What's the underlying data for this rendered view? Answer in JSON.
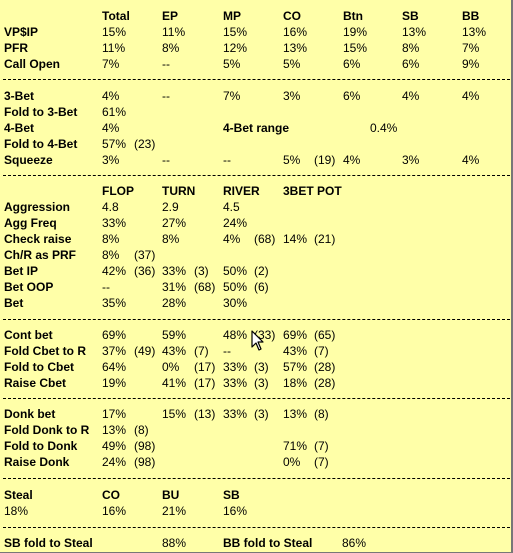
{
  "headers": {
    "positions": [
      "Total",
      "EP",
      "MP",
      "CO",
      "Btn",
      "SB",
      "BB"
    ],
    "streets": [
      "FLOP",
      "TURN",
      "RIVER",
      "3BET POT"
    ],
    "steal": [
      "CO",
      "BU",
      "SB"
    ]
  },
  "preflop": [
    {
      "label": "VP$IP",
      "values": [
        "15%",
        "11%",
        "15%",
        "16%",
        "19%",
        "13%",
        "13%"
      ]
    },
    {
      "label": "PFR",
      "values": [
        "11%",
        "8%",
        "12%",
        "13%",
        "15%",
        "8%",
        "7%"
      ]
    },
    {
      "label": "Call Open",
      "values": [
        "7%",
        "--",
        "5%",
        "5%",
        "6%",
        "6%",
        "9%"
      ]
    }
  ],
  "threebet": {
    "three_bet": {
      "label": "3-Bet",
      "values": [
        "4%",
        "--",
        "7%",
        "3%",
        "6%",
        "4%",
        "4%"
      ]
    },
    "fold_to_3bet": {
      "label": "Fold to 3-Bet",
      "value": "61%"
    },
    "four_bet": {
      "label": "4-Bet",
      "value": "4%",
      "range_label": "4-Bet range",
      "range_value": "0.4%"
    },
    "fold_to_4bet": {
      "label": "Fold to 4-Bet",
      "value": "57%",
      "count": "(23)"
    },
    "squeeze": {
      "label": "Squeeze",
      "total": "3%",
      "ep": "--",
      "mp": "--",
      "co": "5%",
      "co_count": "(19)",
      "btn": "4%",
      "sb": "3%",
      "bb": "4%"
    }
  },
  "postflop": [
    {
      "label": "Aggression",
      "flop": "4.8",
      "turn": "2.9",
      "river": "4.5",
      "pot3": ""
    },
    {
      "label": "Agg Freq",
      "flop": "33%",
      "turn": "27%",
      "river": "24%",
      "pot3": ""
    },
    {
      "label": "Check raise",
      "flop": "8%",
      "turn": "8%",
      "river": "4%",
      "river_n": "(68)",
      "pot3": "14%",
      "pot3_n": "(21)"
    },
    {
      "label": "Ch/R as PRF",
      "flop": "8%",
      "flop_n": "(37)",
      "turn": "",
      "river": "",
      "pot3": ""
    },
    {
      "label": "Bet IP",
      "flop": "42%",
      "flop_n": "(36)",
      "turn": "33%",
      "turn_n": "(3)",
      "river": "50%",
      "river_n": "(2)",
      "pot3": ""
    },
    {
      "label": "Bet OOP",
      "flop": "--",
      "turn": "31%",
      "turn_n": "(68)",
      "river": "50%",
      "river_n": "(6)",
      "pot3": ""
    },
    {
      "label": "Bet",
      "flop": "35%",
      "turn": "28%",
      "river": "30%",
      "pot3": ""
    }
  ],
  "cbet": [
    {
      "label": "Cont bet",
      "flop": "69%",
      "turn": "59%",
      "river": "48%",
      "river_n": "(33)",
      "pot3": "69%",
      "pot3_n": "(65)"
    },
    {
      "label": "Fold Cbet to R",
      "flop": "37%",
      "flop_n": "(49)",
      "turn": "43%",
      "turn_n": "(7)",
      "river": "--",
      "pot3": "43%",
      "pot3_n": "(7)"
    },
    {
      "label": "Fold to Cbet",
      "flop": "64%",
      "turn": "0%",
      "turn_n": "(17)",
      "river": "33%",
      "river_n": "(3)",
      "pot3": "57%",
      "pot3_n": "(28)"
    },
    {
      "label": "Raise Cbet",
      "flop": "19%",
      "turn": "41%",
      "turn_n": "(17)",
      "river": "33%",
      "river_n": "(3)",
      "pot3": "18%",
      "pot3_n": "(28)"
    }
  ],
  "donk": [
    {
      "label": "Donk bet",
      "flop": "17%",
      "turn": "15%",
      "turn_n": "(13)",
      "river": "33%",
      "river_n": "(3)",
      "pot3": "13%",
      "pot3_n": "(8)"
    },
    {
      "label": "Fold Donk to R",
      "flop": "13%",
      "flop_n": "(8)",
      "turn": "",
      "river": "",
      "pot3": ""
    },
    {
      "label": "Fold to Donk",
      "flop": "49%",
      "flop_n": "(98)",
      "turn": "",
      "river": "",
      "pot3": "71%",
      "pot3_n": "(7)"
    },
    {
      "label": "Raise Donk",
      "flop": "24%",
      "flop_n": "(98)",
      "turn": "",
      "river": "",
      "pot3": "0%",
      "pot3_n": "(7)"
    }
  ],
  "steal": {
    "label": "Steal",
    "total": "18%",
    "co": "16%",
    "bu": "21%",
    "sb": "16%"
  },
  "fold_to_steal": {
    "sb_label": "SB fold to Steal",
    "sb_value": "88%",
    "bb_label": "BB fold to Steal",
    "bb_value": "86%"
  },
  "colors": {
    "background": "#ffffa8",
    "text": "#000000"
  }
}
